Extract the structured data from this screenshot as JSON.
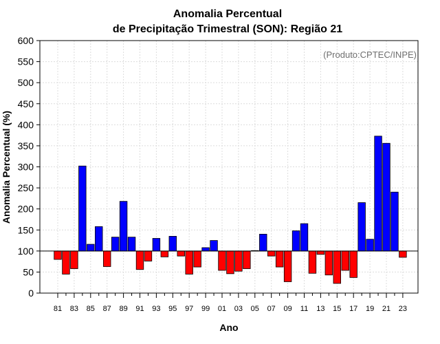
{
  "colors": {
    "positive": "#0000ff",
    "negative": "#ff0000",
    "grid": "#dcdcdc",
    "credit": "#6e6e6e"
  },
  "chart_data": {
    "type": "bar",
    "title_line1": "Anomalia Percentual",
    "title_line2": "de Precipitação Trimestral (SON): Região 21",
    "xlabel": "Ano",
    "ylabel": "Anomalia Percentual (%)",
    "credit": "(Produto:CPTEC/INPE)",
    "baseline": 100,
    "ylim": [
      0,
      600
    ],
    "yticks": [
      0,
      50,
      100,
      150,
      200,
      250,
      300,
      350,
      400,
      450,
      500,
      550,
      600
    ],
    "grid": true,
    "categories": [
      "81",
      "82",
      "83",
      "84",
      "85",
      "86",
      "87",
      "88",
      "89",
      "90",
      "91",
      "92",
      "93",
      "94",
      "95",
      "96",
      "97",
      "98",
      "99",
      "00",
      "01",
      "02",
      "03",
      "04",
      "05",
      "06",
      "07",
      "08",
      "09",
      "10",
      "11",
      "12",
      "13",
      "14",
      "15",
      "16",
      "17",
      "18",
      "19",
      "20",
      "21",
      "22",
      "23"
    ],
    "tick_labels": [
      "81",
      "83",
      "85",
      "87",
      "89",
      "91",
      "93",
      "95",
      "97",
      "99",
      "01",
      "03",
      "05",
      "07",
      "09",
      "11",
      "13",
      "15",
      "17",
      "19",
      "21",
      "23"
    ],
    "values": [
      80,
      45,
      58,
      302,
      116,
      158,
      63,
      133,
      218,
      133,
      56,
      76,
      130,
      86,
      135,
      88,
      45,
      62,
      108,
      125,
      54,
      46,
      52,
      58,
      101,
      140,
      88,
      62,
      27,
      148,
      165,
      47,
      92,
      43,
      23,
      54,
      37,
      215,
      128,
      373,
      356,
      240,
      85
    ]
  }
}
